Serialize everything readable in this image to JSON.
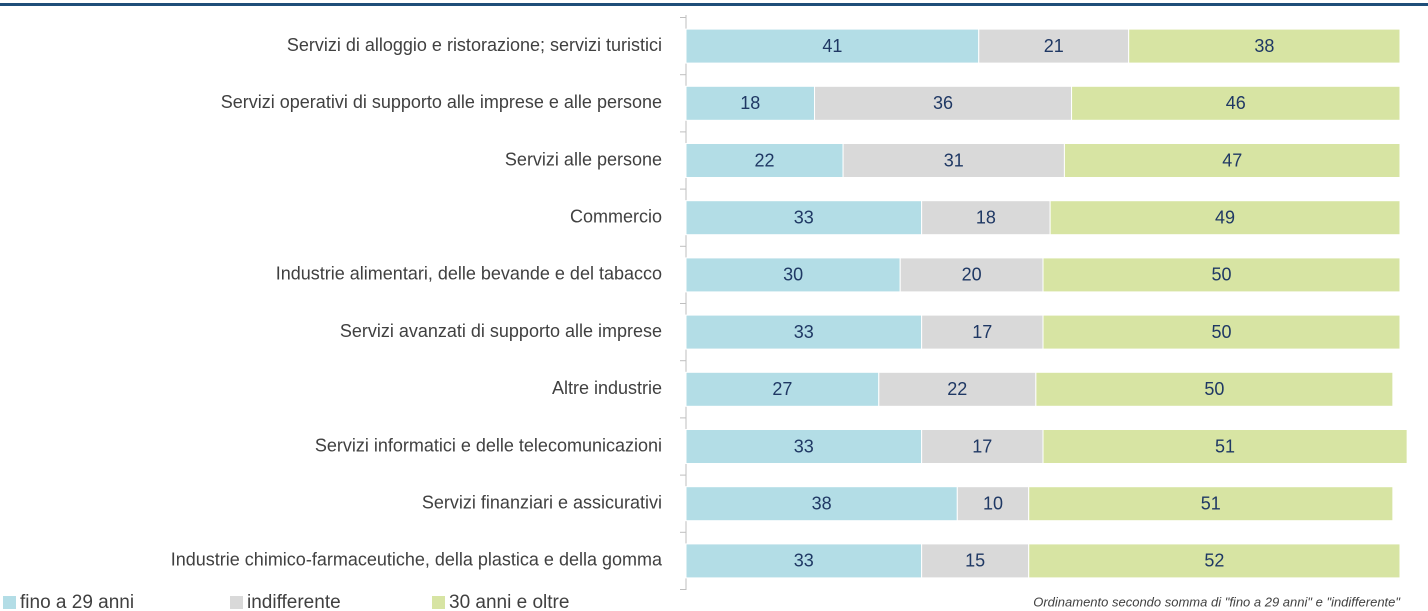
{
  "chart_data": {
    "type": "stacked_barh",
    "categories": [
      "Servizi di alloggio e ristorazione; servizi turistici",
      "Servizi operativi di supporto alle imprese e alle persone",
      "Servizi alle persone",
      "Commercio",
      "Industrie alimentari, delle bevande e del tabacco",
      "Servizi avanzati di supporto alle imprese",
      "Altre industrie",
      "Servizi informatici e delle telecomunicazioni",
      "Servizi finanziari e assicurativi",
      "Industrie chimico-farmaceutiche, della plastica e della gomma"
    ],
    "series": [
      {
        "name": "fino a 29 anni",
        "color": "#b3dde6",
        "values": [
          41,
          18,
          22,
          33,
          30,
          33,
          27,
          33,
          38,
          33
        ]
      },
      {
        "name": "indifferente",
        "color": "#d9d9d9",
        "values": [
          21,
          36,
          31,
          18,
          20,
          17,
          22,
          17,
          10,
          15
        ]
      },
      {
        "name": "30 anni e oltre",
        "color": "#d7e4a3",
        "values": [
          38,
          46,
          47,
          49,
          50,
          50,
          50,
          51,
          51,
          52
        ]
      }
    ],
    "xlim": [
      0,
      100
    ],
    "note": "Ordinamento secondo somma di \"fino a 29 anni\" e \"indifferente\""
  }
}
